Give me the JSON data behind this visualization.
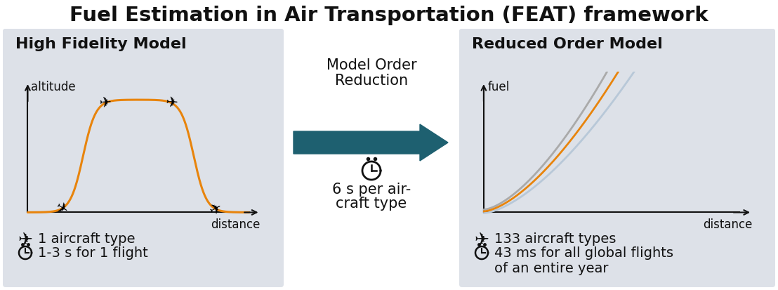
{
  "title": "Fuel Estimation in Air Transportation (FEAT) framework",
  "title_fontsize": 21,
  "title_fontweight": "bold",
  "bg_color": "#ffffff",
  "panel_bg": "#dde1e8",
  "left_panel_title": "High Fidelity Model",
  "right_panel_title": "Reduced Order Model",
  "middle_text_line1": "Model Order",
  "middle_text_line2": "Reduction",
  "orange_color": "#e8840c",
  "gray_color1": "#aaaaaa",
  "gray_color2": "#b8c8d8",
  "arrow_color": "#1e6070",
  "axis_color": "#111111",
  "text_color": "#111111",
  "panel_title_fontsize": 16,
  "bullet_fontsize": 14,
  "mid_fontsize": 15,
  "chart_label_fontsize": 12
}
